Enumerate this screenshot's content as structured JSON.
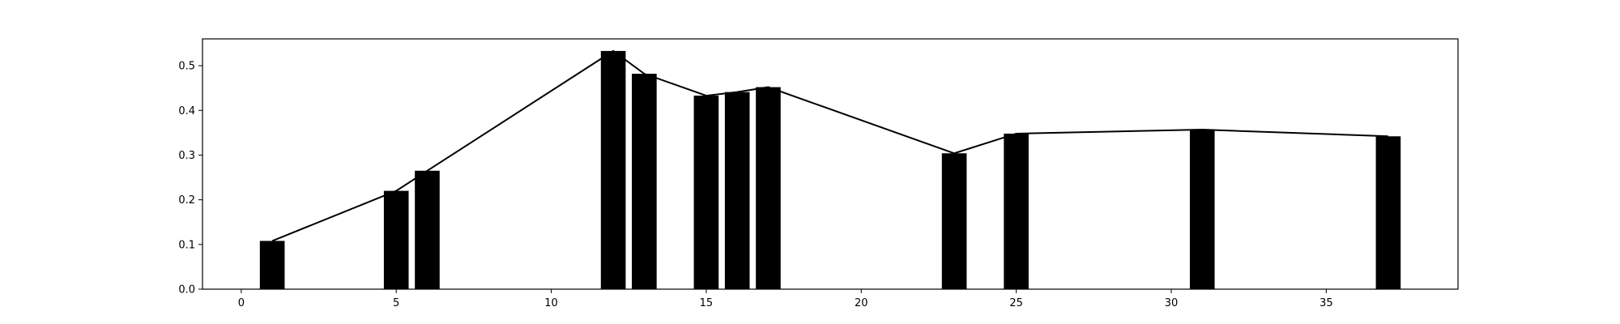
{
  "chart_data": {
    "type": "bar",
    "x": [
      1,
      5,
      6,
      12,
      13,
      15,
      16,
      17,
      23,
      25,
      31,
      37
    ],
    "values": [
      0.108,
      0.22,
      0.265,
      0.533,
      0.482,
      0.433,
      0.441,
      0.452,
      0.304,
      0.348,
      0.357,
      0.342
    ],
    "line_overlay": true,
    "title": "",
    "xlabel": "",
    "ylabel": "",
    "xlim": [
      -1.25,
      39.25
    ],
    "ylim": [
      0,
      0.56
    ],
    "xticks": [
      0,
      5,
      10,
      15,
      20,
      25,
      30,
      35
    ],
    "yticks": [
      0.0,
      0.1,
      0.2,
      0.3,
      0.4,
      0.5
    ],
    "ytick_labels": [
      "0.0",
      "0.1",
      "0.2",
      "0.3",
      "0.4",
      "0.5"
    ],
    "grid": false,
    "colors": {
      "bar": "#000000",
      "line": "#000000",
      "axes": "#000000",
      "background": "#ffffff"
    }
  }
}
